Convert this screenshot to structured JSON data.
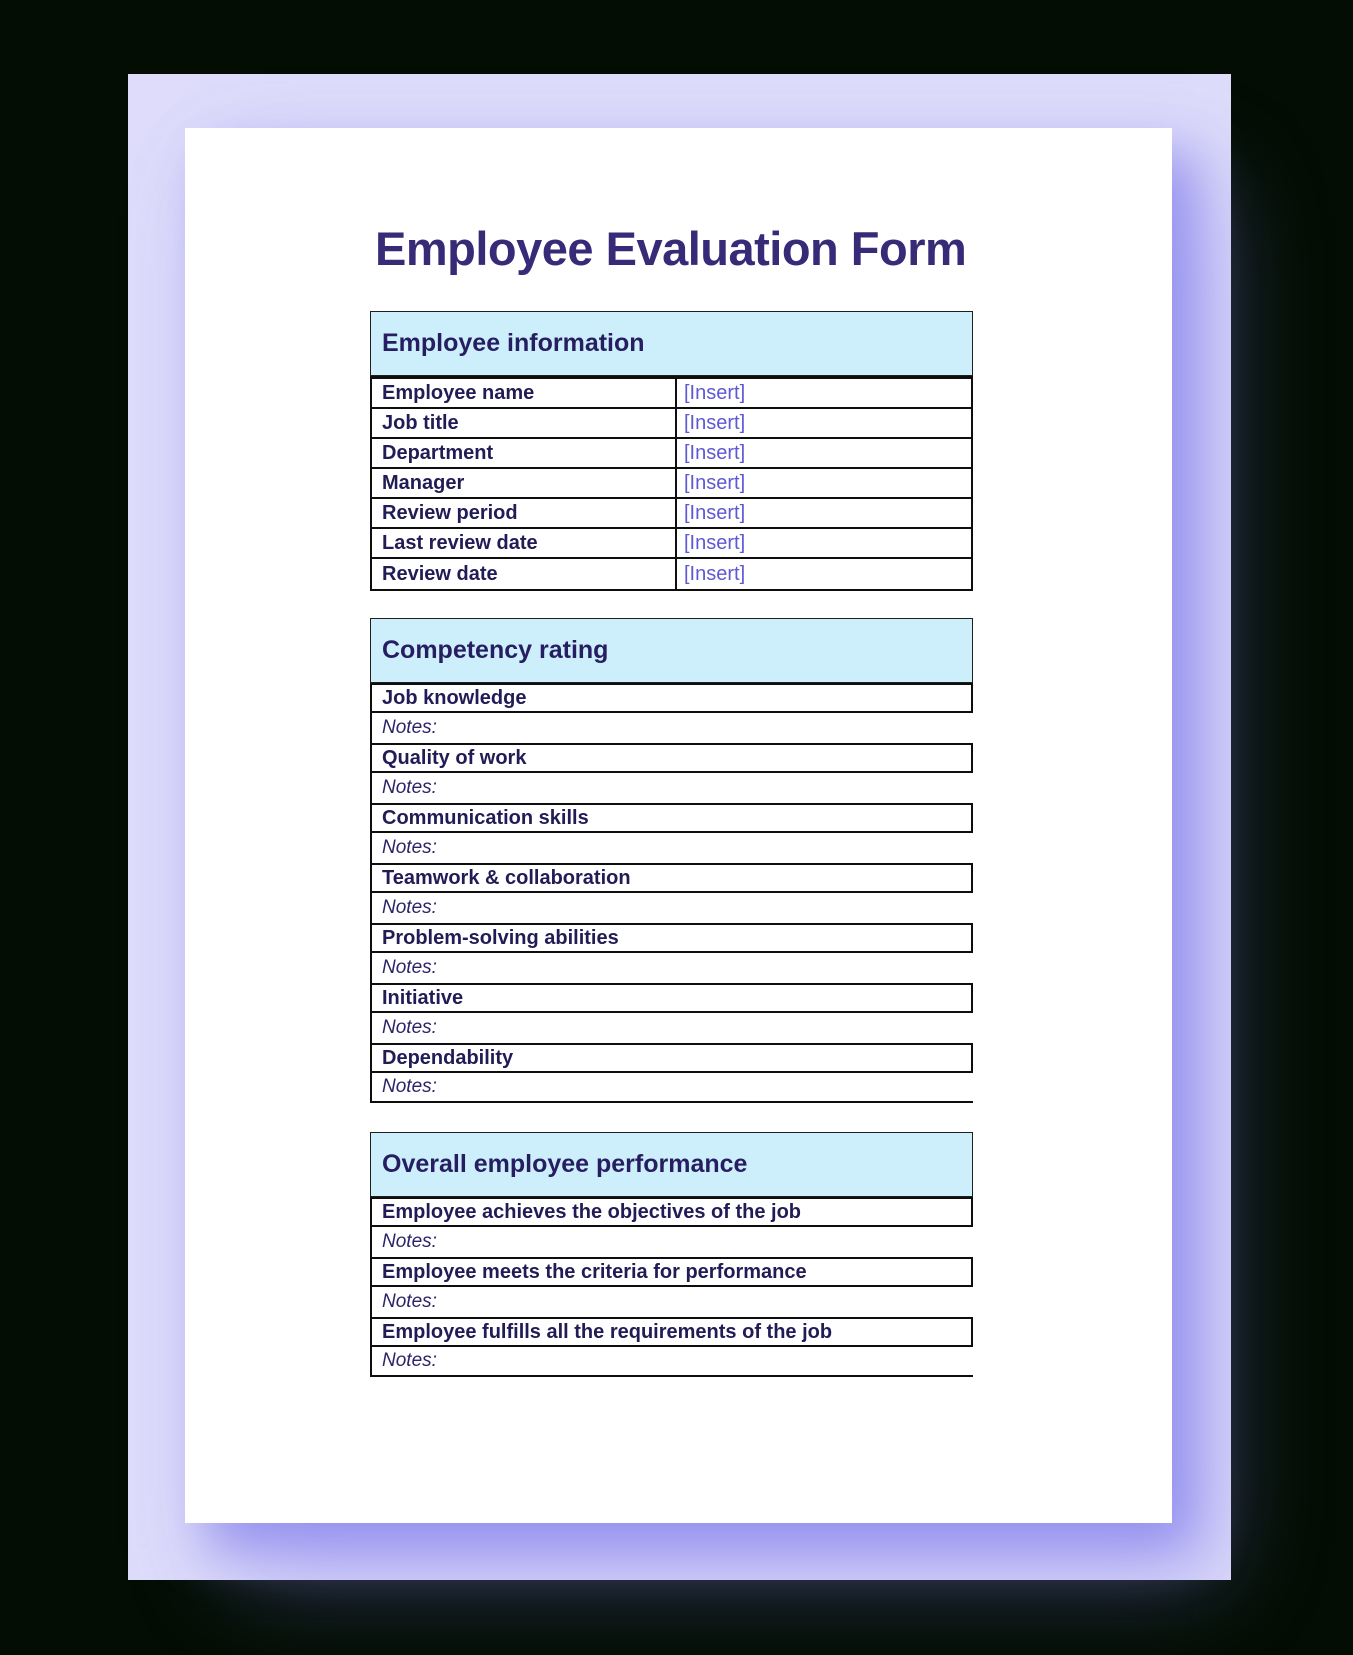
{
  "document": {
    "title": "Employee Evaluation Form"
  },
  "tables": {
    "info": {
      "header": "Employee information",
      "rows": [
        {
          "label": "Employee name",
          "value": "[Insert]"
        },
        {
          "label": "Job title",
          "value": "[Insert]"
        },
        {
          "label": "Department",
          "value": "[Insert]"
        },
        {
          "label": "Manager",
          "value": "[Insert]"
        },
        {
          "label": "Review period",
          "value": "[Insert]"
        },
        {
          "label": "Last review date",
          "value": "[Insert]"
        },
        {
          "label": "Review date",
          "value": "[Insert]"
        }
      ]
    },
    "competency": {
      "header": "Competency rating",
      "notes_label": "Notes:",
      "criteria": [
        "Job knowledge",
        "Quality of work",
        "Communication skills",
        "Teamwork & collaboration",
        "Problem-solving abilities",
        "Initiative",
        "Dependability"
      ]
    },
    "overall": {
      "header": "Overall employee performance",
      "notes_label": "Notes:",
      "criteria": [
        "Employee achieves the objectives of the job",
        "Employee meets the criteria for performance",
        "Employee fulfills all the requirements of the job"
      ]
    }
  },
  "colors": {
    "section_header_fill": "#cdeefb",
    "title_text": "#372b78",
    "label_text": "#211c55",
    "insert_placeholder_text": "#5e58d4",
    "table_border": "#0e0e0e",
    "page_background": "#ffffff",
    "mat_background": "#dedcfa",
    "outer_background": "#030d03"
  }
}
